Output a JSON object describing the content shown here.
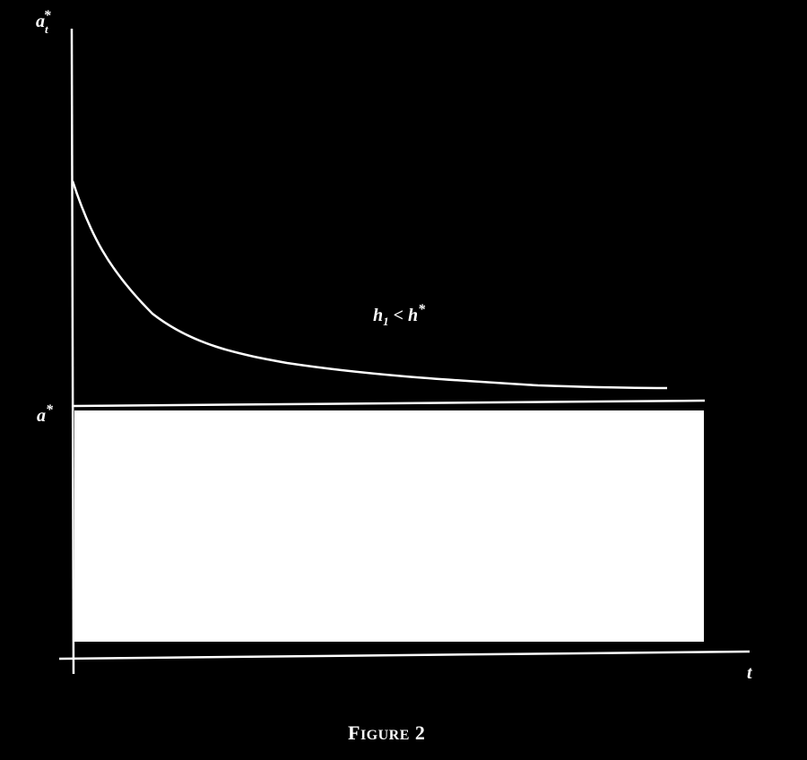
{
  "figure": {
    "y_axis_label": "a",
    "y_axis_label_sub": "t",
    "y_axis_label_sup": "*",
    "x_axis_label": "t",
    "steady_state_label": "a",
    "steady_state_label_sup": "*",
    "curve_label_h": "h",
    "curve_label_sub": "1",
    "curve_label_rel": " < ",
    "curve_label_h2": "h",
    "curve_label_sup": "*",
    "caption_initial": "F",
    "caption_rest": "IGURE",
    "caption_number": " 2"
  },
  "colors": {
    "background": "#000000",
    "foreground": "#ffffff"
  }
}
